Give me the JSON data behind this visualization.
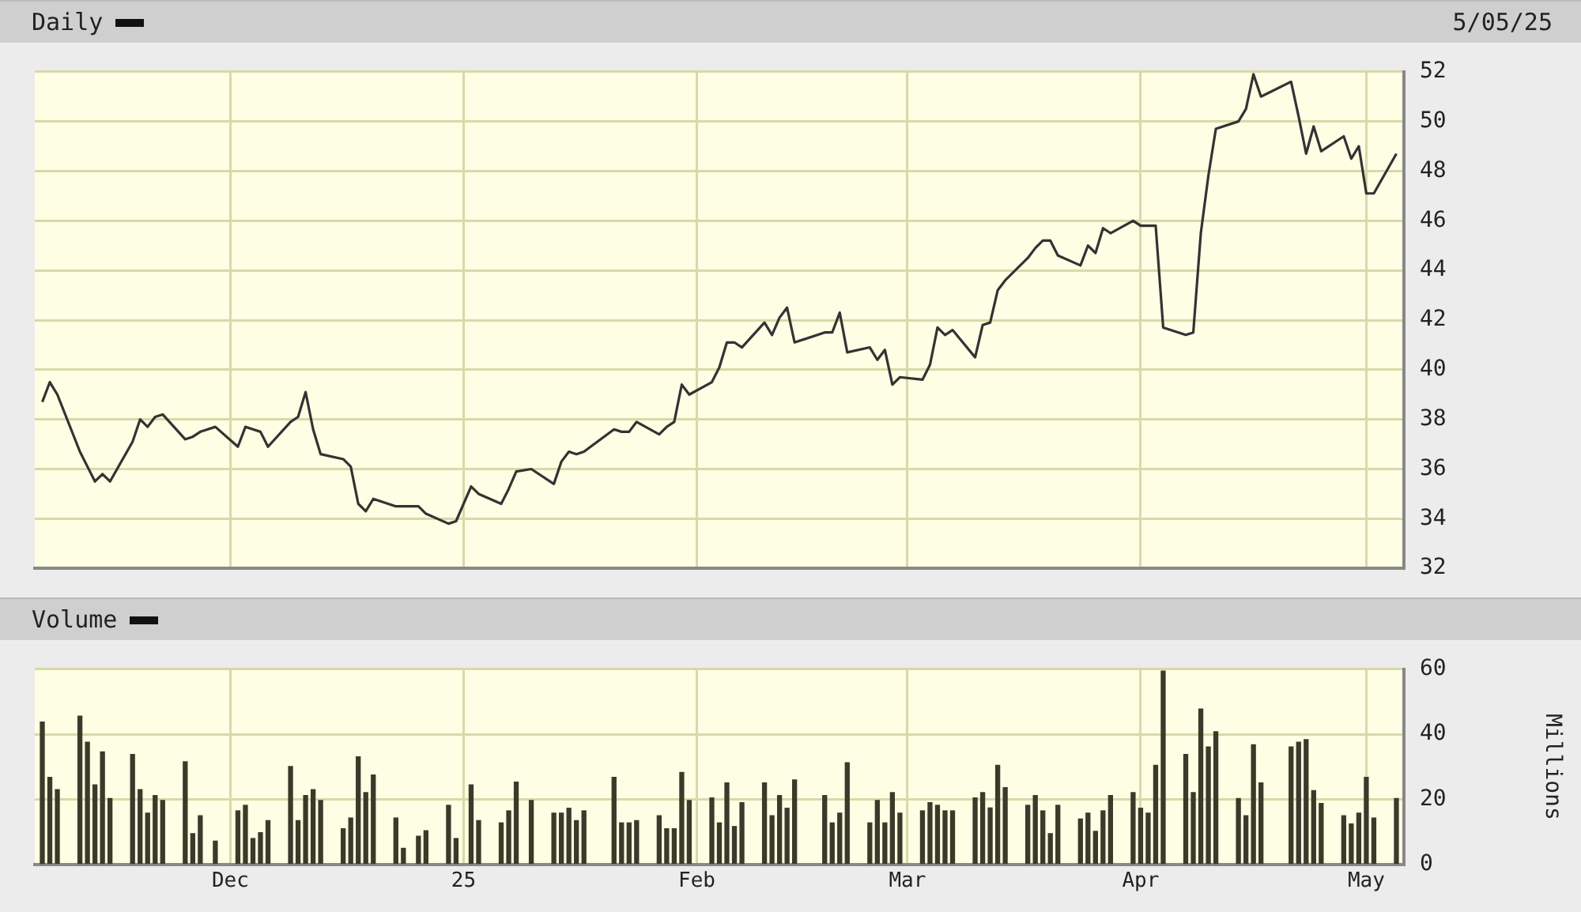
{
  "chart_data": [
    {
      "type": "line",
      "title": "Daily",
      "annotations": [
        "5/05/25"
      ],
      "x": [
        "2024-11-06",
        "2024-11-07",
        "2024-11-08",
        "2024-11-11",
        "2024-11-12",
        "2024-11-13",
        "2024-11-14",
        "2024-11-15",
        "2024-11-18",
        "2024-11-19",
        "2024-11-20",
        "2024-11-21",
        "2024-11-22",
        "2024-11-25",
        "2024-11-26",
        "2024-11-27",
        "2024-11-29",
        "2024-12-02",
        "2024-12-03",
        "2024-12-04",
        "2024-12-05",
        "2024-12-06",
        "2024-12-09",
        "2024-12-10",
        "2024-12-11",
        "2024-12-12",
        "2024-12-13",
        "2024-12-16",
        "2024-12-17",
        "2024-12-18",
        "2024-12-19",
        "2024-12-20",
        "2024-12-23",
        "2024-12-24",
        "2024-12-26",
        "2024-12-27",
        "2024-12-30",
        "2024-12-31",
        "2025-01-02",
        "2025-01-03",
        "2025-01-06",
        "2025-01-07",
        "2025-01-08",
        "2025-01-10",
        "2025-01-13",
        "2025-01-14",
        "2025-01-15",
        "2025-01-16",
        "2025-01-17",
        "2025-01-21",
        "2025-01-22",
        "2025-01-23",
        "2025-01-24",
        "2025-01-27",
        "2025-01-28",
        "2025-01-29",
        "2025-01-30",
        "2025-01-31",
        "2025-02-03",
        "2025-02-04",
        "2025-02-05",
        "2025-02-06",
        "2025-02-07",
        "2025-02-10",
        "2025-02-11",
        "2025-02-12",
        "2025-02-13",
        "2025-02-14",
        "2025-02-18",
        "2025-02-19",
        "2025-02-20",
        "2025-02-21",
        "2025-02-24",
        "2025-02-25",
        "2025-02-26",
        "2025-02-27",
        "2025-02-28",
        "2025-03-03",
        "2025-03-04",
        "2025-03-05",
        "2025-03-06",
        "2025-03-07",
        "2025-03-10",
        "2025-03-11",
        "2025-03-12",
        "2025-03-13",
        "2025-03-14",
        "2025-03-17",
        "2025-03-18",
        "2025-03-19",
        "2025-03-20",
        "2025-03-21",
        "2025-03-24",
        "2025-03-25",
        "2025-03-26",
        "2025-03-27",
        "2025-03-28",
        "2025-03-31",
        "2025-04-01",
        "2025-04-02",
        "2025-04-03",
        "2025-04-04",
        "2025-04-07",
        "2025-04-08",
        "2025-04-09",
        "2025-04-10",
        "2025-04-11",
        "2025-04-14",
        "2025-04-15",
        "2025-04-16",
        "2025-04-17",
        "2025-04-21",
        "2025-04-22",
        "2025-04-23",
        "2025-04-24",
        "2025-04-25",
        "2025-04-28",
        "2025-04-29",
        "2025-04-30",
        "2025-05-01",
        "2025-05-02",
        "2025-05-05"
      ],
      "series": [
        {
          "color": "#333333",
          "values": [
            38.7,
            39.5,
            39.0,
            36.7,
            36.1,
            35.5,
            35.8,
            35.5,
            37.1,
            38.0,
            37.7,
            38.1,
            38.2,
            37.2,
            37.3,
            37.5,
            37.7,
            36.9,
            37.7,
            37.6,
            37.5,
            36.9,
            37.9,
            38.1,
            39.1,
            37.6,
            36.6,
            36.4,
            36.1,
            34.6,
            34.3,
            34.8,
            34.5,
            34.5,
            34.5,
            34.2,
            33.8,
            33.9,
            35.3,
            35.0,
            34.6,
            35.2,
            35.9,
            36.0,
            35.4,
            36.3,
            36.7,
            36.6,
            36.7,
            37.6,
            37.5,
            37.5,
            37.9,
            37.4,
            37.7,
            37.9,
            39.4,
            39.0,
            39.5,
            40.1,
            41.1,
            41.1,
            40.9,
            41.9,
            41.4,
            42.1,
            42.5,
            41.1,
            41.5,
            41.5,
            42.3,
            40.7,
            40.9,
            40.4,
            40.8,
            39.4,
            39.7,
            39.6,
            40.2,
            41.7,
            41.4,
            41.6,
            40.5,
            41.8,
            41.9,
            43.2,
            43.6,
            44.5,
            44.9,
            45.2,
            45.2,
            44.6,
            44.2,
            45.0,
            44.7,
            45.7,
            45.5,
            46.0,
            45.8,
            45.8,
            45.8,
            41.7,
            41.4,
            41.5,
            45.5,
            47.8,
            49.7,
            50.0,
            50.5,
            51.9,
            51.0,
            51.6,
            50.2,
            48.7,
            49.8,
            48.8,
            49.4,
            48.5,
            49.0,
            47.1,
            47.1,
            48.7
          ]
        }
      ],
      "xlim": [
        "2024-11-05",
        "2025-05-06"
      ],
      "xticks": [
        {
          "value": "2024-12-01",
          "label": null
        },
        {
          "value": "2025-01-01",
          "label": null
        },
        {
          "value": "2025-02-01",
          "label": null
        },
        {
          "value": "2025-03-01",
          "label": null
        },
        {
          "value": "2025-04-01",
          "label": null
        },
        {
          "value": "2025-05-01",
          "label": null
        }
      ],
      "ylim": [
        32,
        52
      ],
      "yticks": [
        32,
        34,
        36,
        38,
        40,
        42,
        44,
        46,
        48,
        50,
        52
      ],
      "grid": true,
      "tick_labels": "y"
    },
    {
      "type": "bar",
      "title": "Volume",
      "ylabel": "Millions",
      "x": [
        "2024-11-06",
        "2024-11-07",
        "2024-11-08",
        "2024-11-11",
        "2024-11-12",
        "2024-11-13",
        "2024-11-14",
        "2024-11-15",
        "2024-11-18",
        "2024-11-19",
        "2024-11-20",
        "2024-11-21",
        "2024-11-22",
        "2024-11-25",
        "2024-11-26",
        "2024-11-27",
        "2024-11-29",
        "2024-12-02",
        "2024-12-03",
        "2024-12-04",
        "2024-12-05",
        "2024-12-06",
        "2024-12-09",
        "2024-12-10",
        "2024-12-11",
        "2024-12-12",
        "2024-12-13",
        "2024-12-16",
        "2024-12-17",
        "2024-12-18",
        "2024-12-19",
        "2024-12-20",
        "2024-12-23",
        "2024-12-24",
        "2024-12-26",
        "2024-12-27",
        "2024-12-30",
        "2024-12-31",
        "2025-01-02",
        "2025-01-03",
        "2025-01-06",
        "2025-01-07",
        "2025-01-08",
        "2025-01-10",
        "2025-01-13",
        "2025-01-14",
        "2025-01-15",
        "2025-01-16",
        "2025-01-17",
        "2025-01-21",
        "2025-01-22",
        "2025-01-23",
        "2025-01-24",
        "2025-01-27",
        "2025-01-28",
        "2025-01-29",
        "2025-01-30",
        "2025-01-31",
        "2025-02-03",
        "2025-02-04",
        "2025-02-05",
        "2025-02-06",
        "2025-02-07",
        "2025-02-10",
        "2025-02-11",
        "2025-02-12",
        "2025-02-13",
        "2025-02-14",
        "2025-02-18",
        "2025-02-19",
        "2025-02-20",
        "2025-02-21",
        "2025-02-24",
        "2025-02-25",
        "2025-02-26",
        "2025-02-27",
        "2025-02-28",
        "2025-03-03",
        "2025-03-04",
        "2025-03-05",
        "2025-03-06",
        "2025-03-07",
        "2025-03-10",
        "2025-03-11",
        "2025-03-12",
        "2025-03-13",
        "2025-03-14",
        "2025-03-17",
        "2025-03-18",
        "2025-03-19",
        "2025-03-20",
        "2025-03-21",
        "2025-03-24",
        "2025-03-25",
        "2025-03-26",
        "2025-03-27",
        "2025-03-28",
        "2025-03-31",
        "2025-04-01",
        "2025-04-02",
        "2025-04-03",
        "2025-04-04",
        "2025-04-07",
        "2025-04-08",
        "2025-04-09",
        "2025-04-10",
        "2025-04-11",
        "2025-04-14",
        "2025-04-15",
        "2025-04-16",
        "2025-04-17",
        "2025-04-21",
        "2025-04-22",
        "2025-04-23",
        "2025-04-24",
        "2025-04-25",
        "2025-04-28",
        "2025-04-29",
        "2025-04-30",
        "2025-05-01",
        "2025-05-02",
        "2025-05-05"
      ],
      "series": [
        {
          "color": "#3a3a2a",
          "values": [
            43.8,
            26.8,
            23.0,
            45.6,
            37.6,
            24.5,
            34.6,
            20.3,
            33.8,
            23.0,
            15.8,
            21.2,
            19.7,
            31.6,
            9.5,
            15.0,
            7.2,
            16.5,
            18.2,
            8.0,
            9.8,
            13.5,
            30.1,
            13.5,
            21.2,
            23.0,
            19.7,
            11.0,
            14.3,
            33.1,
            22.1,
            27.5,
            14.3,
            5.0,
            8.7,
            10.4,
            18.2,
            8.0,
            24.5,
            13.5,
            12.8,
            16.5,
            25.3,
            19.7,
            15.8,
            15.8,
            17.3,
            13.5,
            16.5,
            26.8,
            12.8,
            12.8,
            13.5,
            15.0,
            11.0,
            11.0,
            28.3,
            19.7,
            20.5,
            12.8,
            25.1,
            11.7,
            19.0,
            25.1,
            15.0,
            21.2,
            17.3,
            26.0,
            21.2,
            12.8,
            15.8,
            31.3,
            12.8,
            19.7,
            12.8,
            22.1,
            15.8,
            16.5,
            19.0,
            18.2,
            16.5,
            16.5,
            20.5,
            22.1,
            17.4,
            30.5,
            23.6,
            18.2,
            21.2,
            16.5,
            9.5,
            18.2,
            14.0,
            15.8,
            10.2,
            16.5,
            21.2,
            22.1,
            17.3,
            15.8,
            30.5,
            59.4,
            33.8,
            22.1,
            47.8,
            36.1,
            40.8,
            20.3,
            15.0,
            36.8,
            25.1,
            36.1,
            37.6,
            38.4,
            22.7,
            18.8,
            15.0,
            12.5,
            15.8,
            26.8,
            14.3,
            20.3
          ]
        }
      ],
      "xlim": [
        "2024-11-05",
        "2025-05-06"
      ],
      "xticks": [
        {
          "value": "2024-12-01",
          "label": "Dec"
        },
        {
          "value": "2025-01-01",
          "label": "25"
        },
        {
          "value": "2025-02-01",
          "label": "Feb"
        },
        {
          "value": "2025-03-01",
          "label": "Mar"
        },
        {
          "value": "2025-04-01",
          "label": "Apr"
        },
        {
          "value": "2025-05-01",
          "label": "May"
        }
      ],
      "ylim": [
        0,
        60
      ],
      "yticks": [
        0,
        20,
        40,
        60
      ],
      "grid": true
    }
  ]
}
